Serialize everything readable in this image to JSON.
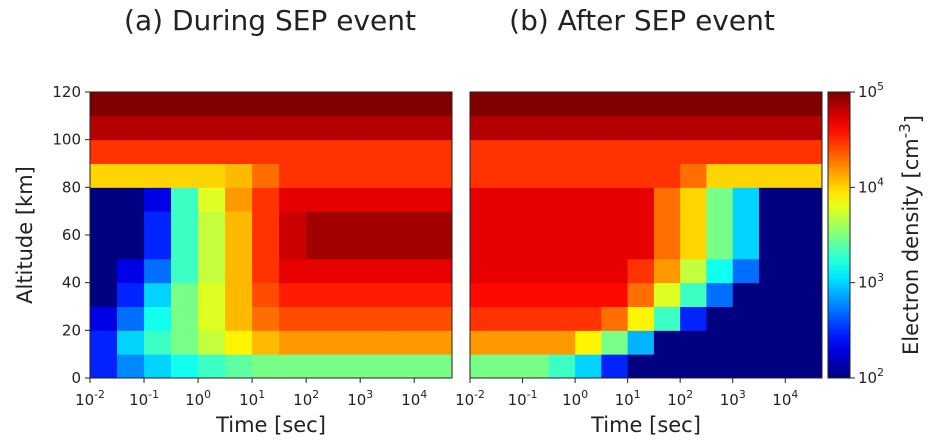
{
  "chart_data": [
    {
      "type": "heatmap",
      "title": "(a) During SEP event",
      "xlabel": "Time [sec]",
      "ylabel": "Altitude [km]",
      "xscale": "log",
      "xlim": [
        0.01,
        50000
      ],
      "ylim": [
        0,
        120
      ],
      "xticks": [
        {
          "value": 0.01,
          "label": "10^-2"
        },
        {
          "value": 0.1,
          "label": "10^-1"
        },
        {
          "value": 1,
          "label": "10^0"
        },
        {
          "value": 10,
          "label": "10^1"
        },
        {
          "value": 100,
          "label": "10^2"
        },
        {
          "value": 1000,
          "label": "10^3"
        },
        {
          "value": 10000,
          "label": "10^4"
        }
      ],
      "yticks": [
        0,
        20,
        40,
        60,
        80,
        100,
        120
      ],
      "colormap": "jet",
      "clim": [
        100,
        100000
      ],
      "cscale": "log",
      "x_bins": [
        0.01,
        0.0316,
        0.1,
        0.316,
        1,
        3.16,
        10,
        31.6,
        100,
        316,
        1000,
        3162,
        10000,
        31623,
        50000
      ],
      "y_bins": [
        0,
        10,
        20,
        30,
        40,
        50,
        60,
        70,
        80,
        90,
        100,
        110,
        120
      ],
      "values": [
        [
          300,
          600,
          1000,
          1500,
          2000,
          2500,
          3000,
          3000,
          3000,
          3000,
          3000,
          3000,
          3000,
          3000
        ],
        [
          300,
          1000,
          2000,
          3000,
          5000,
          8000,
          12000,
          15000,
          15000,
          15000,
          15000,
          15000,
          15000,
          15000
        ],
        [
          200,
          500,
          1500,
          3000,
          6000,
          12000,
          20000,
          25000,
          25000,
          25000,
          25000,
          25000,
          25000,
          25000
        ],
        [
          100,
          300,
          1000,
          3000,
          6000,
          12000,
          25000,
          35000,
          35000,
          35000,
          35000,
          35000,
          35000,
          35000
        ],
        [
          100,
          200,
          500,
          2000,
          5000,
          12000,
          30000,
          50000,
          50000,
          50000,
          50000,
          50000,
          50000,
          50000
        ],
        [
          100,
          100,
          300,
          2000,
          5000,
          12000,
          30000,
          60000,
          80000,
          80000,
          80000,
          80000,
          80000,
          80000
        ],
        [
          100,
          100,
          300,
          2000,
          5000,
          12000,
          30000,
          60000,
          80000,
          80000,
          80000,
          80000,
          80000,
          80000
        ],
        [
          100,
          100,
          200,
          2000,
          6000,
          15000,
          30000,
          50000,
          50000,
          50000,
          50000,
          50000,
          50000,
          50000
        ],
        [
          10000,
          10000,
          10000,
          10000,
          10000,
          12000,
          20000,
          30000,
          30000,
          30000,
          30000,
          30000,
          30000,
          30000
        ],
        [
          30000,
          30000,
          30000,
          30000,
          30000,
          30000,
          30000,
          30000,
          30000,
          30000,
          30000,
          30000,
          30000,
          30000
        ],
        [
          70000,
          70000,
          70000,
          70000,
          70000,
          70000,
          70000,
          70000,
          70000,
          70000,
          70000,
          70000,
          70000,
          70000
        ],
        [
          100000,
          100000,
          100000,
          100000,
          100000,
          100000,
          100000,
          100000,
          100000,
          100000,
          100000,
          100000,
          100000,
          100000
        ]
      ]
    },
    {
      "type": "heatmap",
      "title": "(b) After SEP event",
      "xlabel": "Time [sec]",
      "xscale": "log",
      "xlim": [
        0.01,
        50000
      ],
      "ylim": [
        0,
        120
      ],
      "xticks": [
        {
          "value": 0.01,
          "label": "10^-2"
        },
        {
          "value": 0.1,
          "label": "10^-1"
        },
        {
          "value": 1,
          "label": "10^0"
        },
        {
          "value": 10,
          "label": "10^1"
        },
        {
          "value": 100,
          "label": "10^2"
        },
        {
          "value": 1000,
          "label": "10^3"
        },
        {
          "value": 10000,
          "label": "10^4"
        }
      ],
      "colormap": "jet",
      "clim": [
        100,
        100000
      ],
      "cscale": "log",
      "x_bins": [
        0.01,
        0.0316,
        0.1,
        0.316,
        1,
        3.16,
        10,
        31.6,
        100,
        316,
        1000,
        3162,
        10000,
        31623,
        50000
      ],
      "y_bins": [
        0,
        10,
        20,
        30,
        40,
        50,
        60,
        70,
        80,
        90,
        100,
        110,
        120
      ],
      "values": [
        [
          3000,
          3000,
          3000,
          2000,
          1000,
          300,
          100,
          100,
          100,
          100,
          100,
          100,
          100,
          100
        ],
        [
          15000,
          15000,
          15000,
          15000,
          8000,
          3000,
          800,
          100,
          100,
          100,
          100,
          100,
          100,
          100
        ],
        [
          30000,
          30000,
          30000,
          30000,
          30000,
          20000,
          8000,
          2000,
          300,
          100,
          100,
          100,
          100,
          100
        ],
        [
          40000,
          40000,
          40000,
          40000,
          40000,
          40000,
          20000,
          6000,
          2000,
          500,
          100,
          100,
          100,
          100
        ],
        [
          50000,
          50000,
          50000,
          50000,
          50000,
          50000,
          30000,
          15000,
          5000,
          1500,
          500,
          100,
          100,
          100
        ],
        [
          50000,
          50000,
          50000,
          50000,
          50000,
          50000,
          50000,
          20000,
          10000,
          3000,
          1000,
          100,
          100,
          100
        ],
        [
          50000,
          50000,
          50000,
          50000,
          50000,
          50000,
          50000,
          20000,
          10000,
          3000,
          1000,
          100,
          100,
          100
        ],
        [
          50000,
          50000,
          50000,
          50000,
          50000,
          50000,
          50000,
          20000,
          10000,
          3000,
          1000,
          100,
          100,
          100
        ],
        [
          30000,
          30000,
          30000,
          30000,
          30000,
          30000,
          30000,
          30000,
          20000,
          10000,
          10000,
          10000,
          10000,
          10000
        ],
        [
          30000,
          30000,
          30000,
          30000,
          30000,
          30000,
          30000,
          30000,
          30000,
          30000,
          30000,
          30000,
          30000,
          30000
        ],
        [
          70000,
          70000,
          70000,
          70000,
          70000,
          70000,
          70000,
          70000,
          70000,
          70000,
          70000,
          70000,
          70000,
          70000
        ],
        [
          100000,
          100000,
          100000,
          100000,
          100000,
          100000,
          100000,
          100000,
          100000,
          100000,
          100000,
          100000,
          100000,
          100000
        ]
      ],
      "colorbar": {
        "label": "Electron density [cm^-3]",
        "ticks": [
          {
            "value": 100,
            "label": "10^2"
          },
          {
            "value": 1000,
            "label": "10^3"
          },
          {
            "value": 10000,
            "label": "10^4"
          },
          {
            "value": 100000,
            "label": "10^5"
          }
        ]
      }
    }
  ]
}
